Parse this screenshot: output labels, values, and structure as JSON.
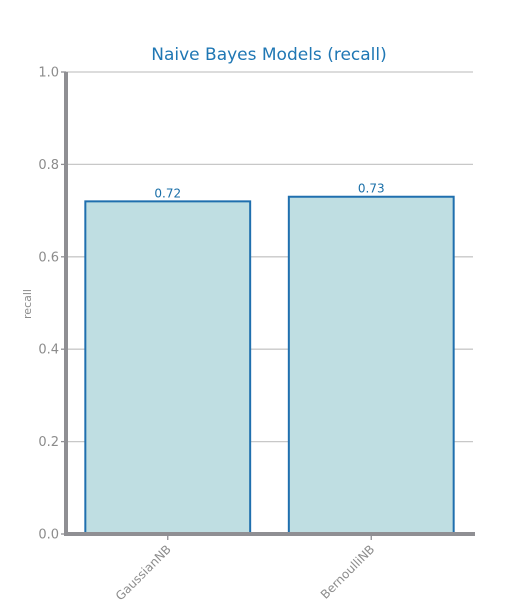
{
  "chart_data": {
    "type": "bar",
    "title": "Naive Bayes Models (recall)",
    "xlabel": "",
    "ylabel": "recall",
    "categories": [
      "GaussianNB",
      "BernoulliNB"
    ],
    "values": [
      0.72,
      0.73
    ],
    "data_labels": [
      "0.72",
      "0.73"
    ],
    "ylim": [
      0,
      1.0
    ],
    "yticks": [
      0.0,
      0.2,
      0.4,
      0.6,
      0.8,
      1.0
    ],
    "ytick_labels": [
      "0.0",
      "0.2",
      "0.4",
      "0.6",
      "0.8",
      "1.0"
    ],
    "grid": true,
    "legend": "none",
    "colors": {
      "bar_fill": "#bfdee2",
      "bar_edge": "#1f6fae",
      "title": "#1f77b4",
      "data_label": "#1a6fa8",
      "grid": "#c8c8c8",
      "axis": "#8f8f93",
      "tick_text": "#8c8c8c"
    }
  }
}
